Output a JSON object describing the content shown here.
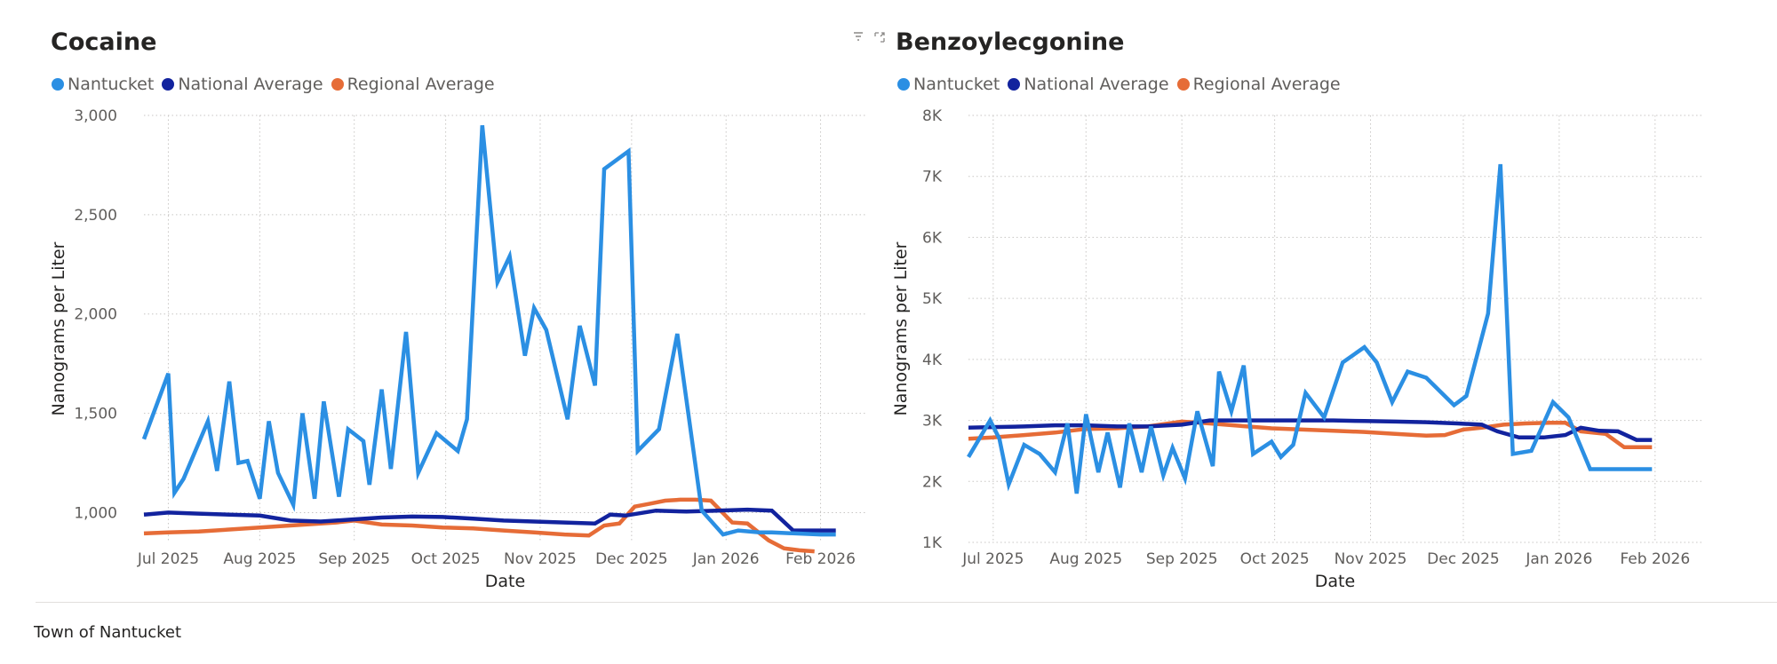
{
  "toolbar": {
    "filter_icon": "filter-icon",
    "focus_icon": "focus-mode-icon"
  },
  "footer": {
    "label": "Town of Nantucket"
  },
  "chart_data": [
    {
      "type": "line",
      "title": "Cocaine",
      "xlabel": "Date",
      "ylabel": "Nanograms per Liter",
      "ylim": [
        850,
        3000
      ],
      "yticks": [
        1000,
        1500,
        2000,
        2500,
        3000
      ],
      "ytick_labels": [
        "1,000",
        "1,500",
        "2,000",
        "2,500",
        "3,000"
      ],
      "xlim": [
        -8,
        229
      ],
      "xticks": [
        0,
        30,
        61,
        91,
        122,
        152,
        183,
        214
      ],
      "xtick_labels": [
        "Jul 2025",
        "Aug 2025",
        "Sep 2025",
        "Oct 2025",
        "Nov 2025",
        "Dec 2025",
        "Jan 2026",
        "Feb 2026"
      ],
      "grid": true,
      "legend": "top-left",
      "series": [
        {
          "name": "Nantucket",
          "color": "#2b8fe3",
          "x": [
            -8,
            0,
            2,
            5,
            13,
            16,
            20,
            23,
            26,
            30,
            33,
            36,
            41,
            44,
            48,
            51,
            56,
            59,
            64,
            66,
            70,
            73,
            78,
            82,
            88,
            95,
            98,
            103,
            108,
            112,
            117,
            120,
            124,
            131,
            135,
            140,
            143,
            151,
            154,
            161,
            167,
            175,
            182,
            187,
            194,
            198,
            214,
            219
          ],
          "y": [
            1370,
            1700,
            1100,
            1170,
            1460,
            1210,
            1660,
            1250,
            1260,
            1070,
            1460,
            1200,
            1040,
            1500,
            1070,
            1560,
            1080,
            1420,
            1360,
            1140,
            1620,
            1220,
            1910,
            1200,
            1400,
            1310,
            1470,
            2950,
            2160,
            2290,
            1790,
            2030,
            1920,
            1470,
            1940,
            1640,
            2730,
            2820,
            1310,
            1420,
            1900,
            1010,
            890,
            910,
            900,
            900,
            890,
            890
          ]
        },
        {
          "name": "National Average",
          "color": "#12239e",
          "x": [
            -8,
            0,
            10,
            20,
            30,
            40,
            50,
            60,
            70,
            80,
            90,
            100,
            110,
            120,
            130,
            140,
            145,
            150,
            160,
            170,
            180,
            190,
            198,
            205,
            210,
            215,
            219
          ],
          "y": [
            990,
            1000,
            995,
            990,
            985,
            960,
            955,
            965,
            975,
            980,
            978,
            970,
            960,
            955,
            950,
            945,
            990,
            985,
            1010,
            1005,
            1010,
            1015,
            1010,
            910,
            910,
            910,
            910
          ]
        },
        {
          "name": "Regional Average",
          "color": "#e66c37",
          "x": [
            -8,
            0,
            10,
            20,
            30,
            40,
            50,
            55,
            61,
            70,
            80,
            90,
            100,
            110,
            120,
            130,
            138,
            143,
            148,
            153,
            158,
            163,
            168,
            173,
            178,
            185,
            190,
            197,
            202,
            207,
            212
          ],
          "y": [
            895,
            900,
            905,
            915,
            925,
            935,
            945,
            950,
            960,
            940,
            935,
            925,
            920,
            910,
            900,
            890,
            885,
            935,
            945,
            1030,
            1045,
            1060,
            1065,
            1065,
            1060,
            950,
            945,
            860,
            820,
            810,
            805
          ]
        }
      ]
    },
    {
      "type": "line",
      "title": "Benzoylecgonine",
      "xlabel": "Date",
      "ylabel": "Nanograms per Liter",
      "ylim": [
        1000,
        8000
      ],
      "yticks": [
        1000,
        2000,
        3000,
        4000,
        5000,
        6000,
        7000,
        8000
      ],
      "ytick_labels": [
        "1K",
        "2K",
        "3K",
        "4K",
        "5K",
        "6K",
        "7K",
        "8K"
      ],
      "xlim": [
        -8,
        229
      ],
      "xticks": [
        0,
        30,
        61,
        91,
        122,
        152,
        183,
        214
      ],
      "xtick_labels": [
        "Jul 2025",
        "Aug 2025",
        "Sep 2025",
        "Oct 2025",
        "Nov 2025",
        "Dec 2025",
        "Jan 2026",
        "Feb 2026"
      ],
      "grid": true,
      "legend": "top-left",
      "series": [
        {
          "name": "Nantucket",
          "color": "#2b8fe3",
          "x": [
            -8,
            -1,
            2,
            5,
            10,
            15,
            20,
            24,
            27,
            30,
            34,
            37,
            41,
            44,
            48,
            51,
            55,
            58,
            62,
            66,
            71,
            73,
            77,
            81,
            84,
            90,
            93,
            97,
            101,
            107,
            113,
            120,
            124,
            129,
            134,
            140,
            149,
            153,
            160,
            164,
            168,
            174,
            181,
            186,
            193,
            200,
            205,
            213
          ],
          "y": [
            2400,
            3000,
            2700,
            1950,
            2600,
            2450,
            2150,
            2950,
            1800,
            3100,
            2150,
            2800,
            1900,
            2950,
            2150,
            2900,
            2100,
            2550,
            2050,
            3150,
            2250,
            3800,
            3150,
            3900,
            2450,
            2650,
            2400,
            2600,
            3450,
            3050,
            3950,
            4200,
            3950,
            3300,
            3800,
            3700,
            3250,
            3400,
            4750,
            7200,
            2450,
            2500,
            3300,
            3050,
            2200,
            2200,
            2200,
            2200
          ]
        },
        {
          "name": "National Average",
          "color": "#12239e",
          "x": [
            -8,
            0,
            10,
            20,
            30,
            40,
            50,
            61,
            70,
            80,
            90,
            100,
            110,
            120,
            130,
            140,
            150,
            158,
            163,
            170,
            178,
            185,
            190,
            196,
            202,
            208,
            213
          ],
          "y": [
            2880,
            2890,
            2900,
            2920,
            2920,
            2900,
            2900,
            2930,
            3000,
            3000,
            3000,
            3000,
            3000,
            2990,
            2980,
            2970,
            2950,
            2930,
            2820,
            2720,
            2720,
            2760,
            2880,
            2830,
            2820,
            2680,
            2680
          ]
        },
        {
          "name": "Regional Average",
          "color": "#e66c37",
          "x": [
            -8,
            0,
            10,
            20,
            30,
            40,
            50,
            61,
            70,
            80,
            90,
            100,
            110,
            120,
            130,
            140,
            146,
            152,
            158,
            165,
            172,
            180,
            185,
            190,
            198,
            204,
            209,
            213
          ],
          "y": [
            2700,
            2720,
            2760,
            2800,
            2860,
            2870,
            2900,
            2980,
            2950,
            2910,
            2870,
            2850,
            2830,
            2810,
            2780,
            2750,
            2760,
            2850,
            2880,
            2930,
            2950,
            2960,
            2960,
            2820,
            2780,
            2560,
            2560,
            2560
          ]
        }
      ]
    }
  ]
}
